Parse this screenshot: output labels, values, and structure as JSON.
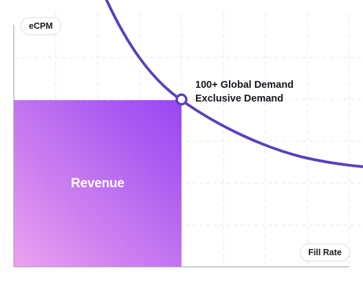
{
  "axes": {
    "y_label": "eCPM",
    "x_label": "Fill Rate"
  },
  "annotations": {
    "line1": "100+ Global Demand",
    "line2": "Exclusive Demand"
  },
  "revenue": {
    "label": "Revenue"
  },
  "colors": {
    "curve": "#5b3fbf",
    "revenue_gradient_start": "#e9a0ef",
    "revenue_gradient_end": "#9a47f2",
    "grid": "#e6e6ee",
    "axis": "#9a9aa5"
  }
}
